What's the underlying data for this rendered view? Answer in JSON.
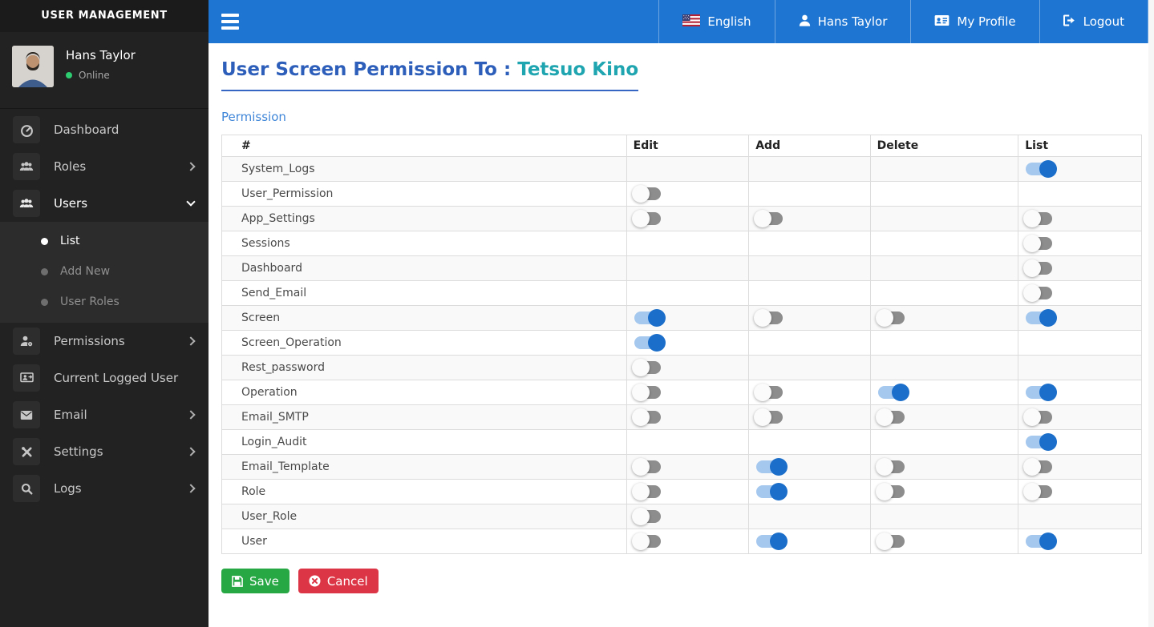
{
  "sidebar": {
    "title": "USER MANAGEMENT",
    "user": {
      "name": "Hans Taylor",
      "status": "Online",
      "status_color": "#2ecc71"
    },
    "items": [
      {
        "label": "Dashboard",
        "icon": "dashboard-icon",
        "has_submenu": false
      },
      {
        "label": "Roles",
        "icon": "roles-icon",
        "has_submenu": true
      },
      {
        "label": "Users",
        "icon": "users-icon",
        "has_submenu": true,
        "expanded": true,
        "children": [
          {
            "label": "List",
            "active": true
          },
          {
            "label": "Add New",
            "active": false
          },
          {
            "label": "User Roles",
            "active": false
          }
        ]
      },
      {
        "label": "Permissions",
        "icon": "permissions-icon",
        "has_submenu": true
      },
      {
        "label": "Current Logged User",
        "icon": "current-user-icon",
        "has_submenu": false
      },
      {
        "label": "Email",
        "icon": "email-icon",
        "has_submenu": true
      },
      {
        "label": "Settings",
        "icon": "settings-icon",
        "has_submenu": true
      },
      {
        "label": "Logs",
        "icon": "logs-icon",
        "has_submenu": true
      }
    ]
  },
  "topbar": {
    "background": "#1f76d2",
    "items": [
      {
        "label": "English",
        "icon": "us-flag-icon"
      },
      {
        "label": "Hans Taylor",
        "icon": "user-icon"
      },
      {
        "label": "My Profile",
        "icon": "id-card-icon"
      },
      {
        "label": "Logout",
        "icon": "logout-icon"
      }
    ]
  },
  "main": {
    "title_prefix": "User Screen Permission To : ",
    "title_user": "Tetsuo Kino",
    "section_label": "Permission",
    "table": {
      "headers": [
        "#",
        "Edit",
        "Add",
        "Delete",
        "List"
      ],
      "rows": [
        {
          "name": "System_Logs",
          "edit": null,
          "add": null,
          "delete": null,
          "list": true
        },
        {
          "name": "User_Permission",
          "edit": false,
          "add": null,
          "delete": null,
          "list": null
        },
        {
          "name": "App_Settings",
          "edit": false,
          "add": false,
          "delete": null,
          "list": false
        },
        {
          "name": "Sessions",
          "edit": null,
          "add": null,
          "delete": null,
          "list": false
        },
        {
          "name": "Dashboard",
          "edit": null,
          "add": null,
          "delete": null,
          "list": false
        },
        {
          "name": "Send_Email",
          "edit": null,
          "add": null,
          "delete": null,
          "list": false
        },
        {
          "name": "Screen",
          "edit": true,
          "add": false,
          "delete": false,
          "list": true
        },
        {
          "name": "Screen_Operation",
          "edit": true,
          "add": null,
          "delete": null,
          "list": null
        },
        {
          "name": "Rest_password",
          "edit": false,
          "add": null,
          "delete": null,
          "list": null
        },
        {
          "name": "Operation",
          "edit": false,
          "add": false,
          "delete": true,
          "list": true
        },
        {
          "name": "Email_SMTP",
          "edit": false,
          "add": false,
          "delete": false,
          "list": false
        },
        {
          "name": "Login_Audit",
          "edit": null,
          "add": null,
          "delete": null,
          "list": true
        },
        {
          "name": "Email_Template",
          "edit": false,
          "add": true,
          "delete": false,
          "list": false
        },
        {
          "name": "Role",
          "edit": false,
          "add": true,
          "delete": false,
          "list": false
        },
        {
          "name": "User_Role",
          "edit": false,
          "add": null,
          "delete": null,
          "list": null
        },
        {
          "name": "User",
          "edit": false,
          "add": true,
          "delete": false,
          "list": true
        }
      ]
    },
    "buttons": {
      "save": "Save",
      "cancel": "Cancel"
    }
  },
  "colors": {
    "topbar_blue": "#1f76d2",
    "sidebar_bg": "#222222",
    "heading_blue": "#2d5fba",
    "heading_teal": "#1fa5b0",
    "toggle_on_knob": "#1b6ec9",
    "toggle_on_track": "#a5c8ef",
    "toggle_off_track": "#8d8d8d",
    "save_green": "#28a745",
    "cancel_red": "#dc3545",
    "online_green": "#2ecc71"
  }
}
